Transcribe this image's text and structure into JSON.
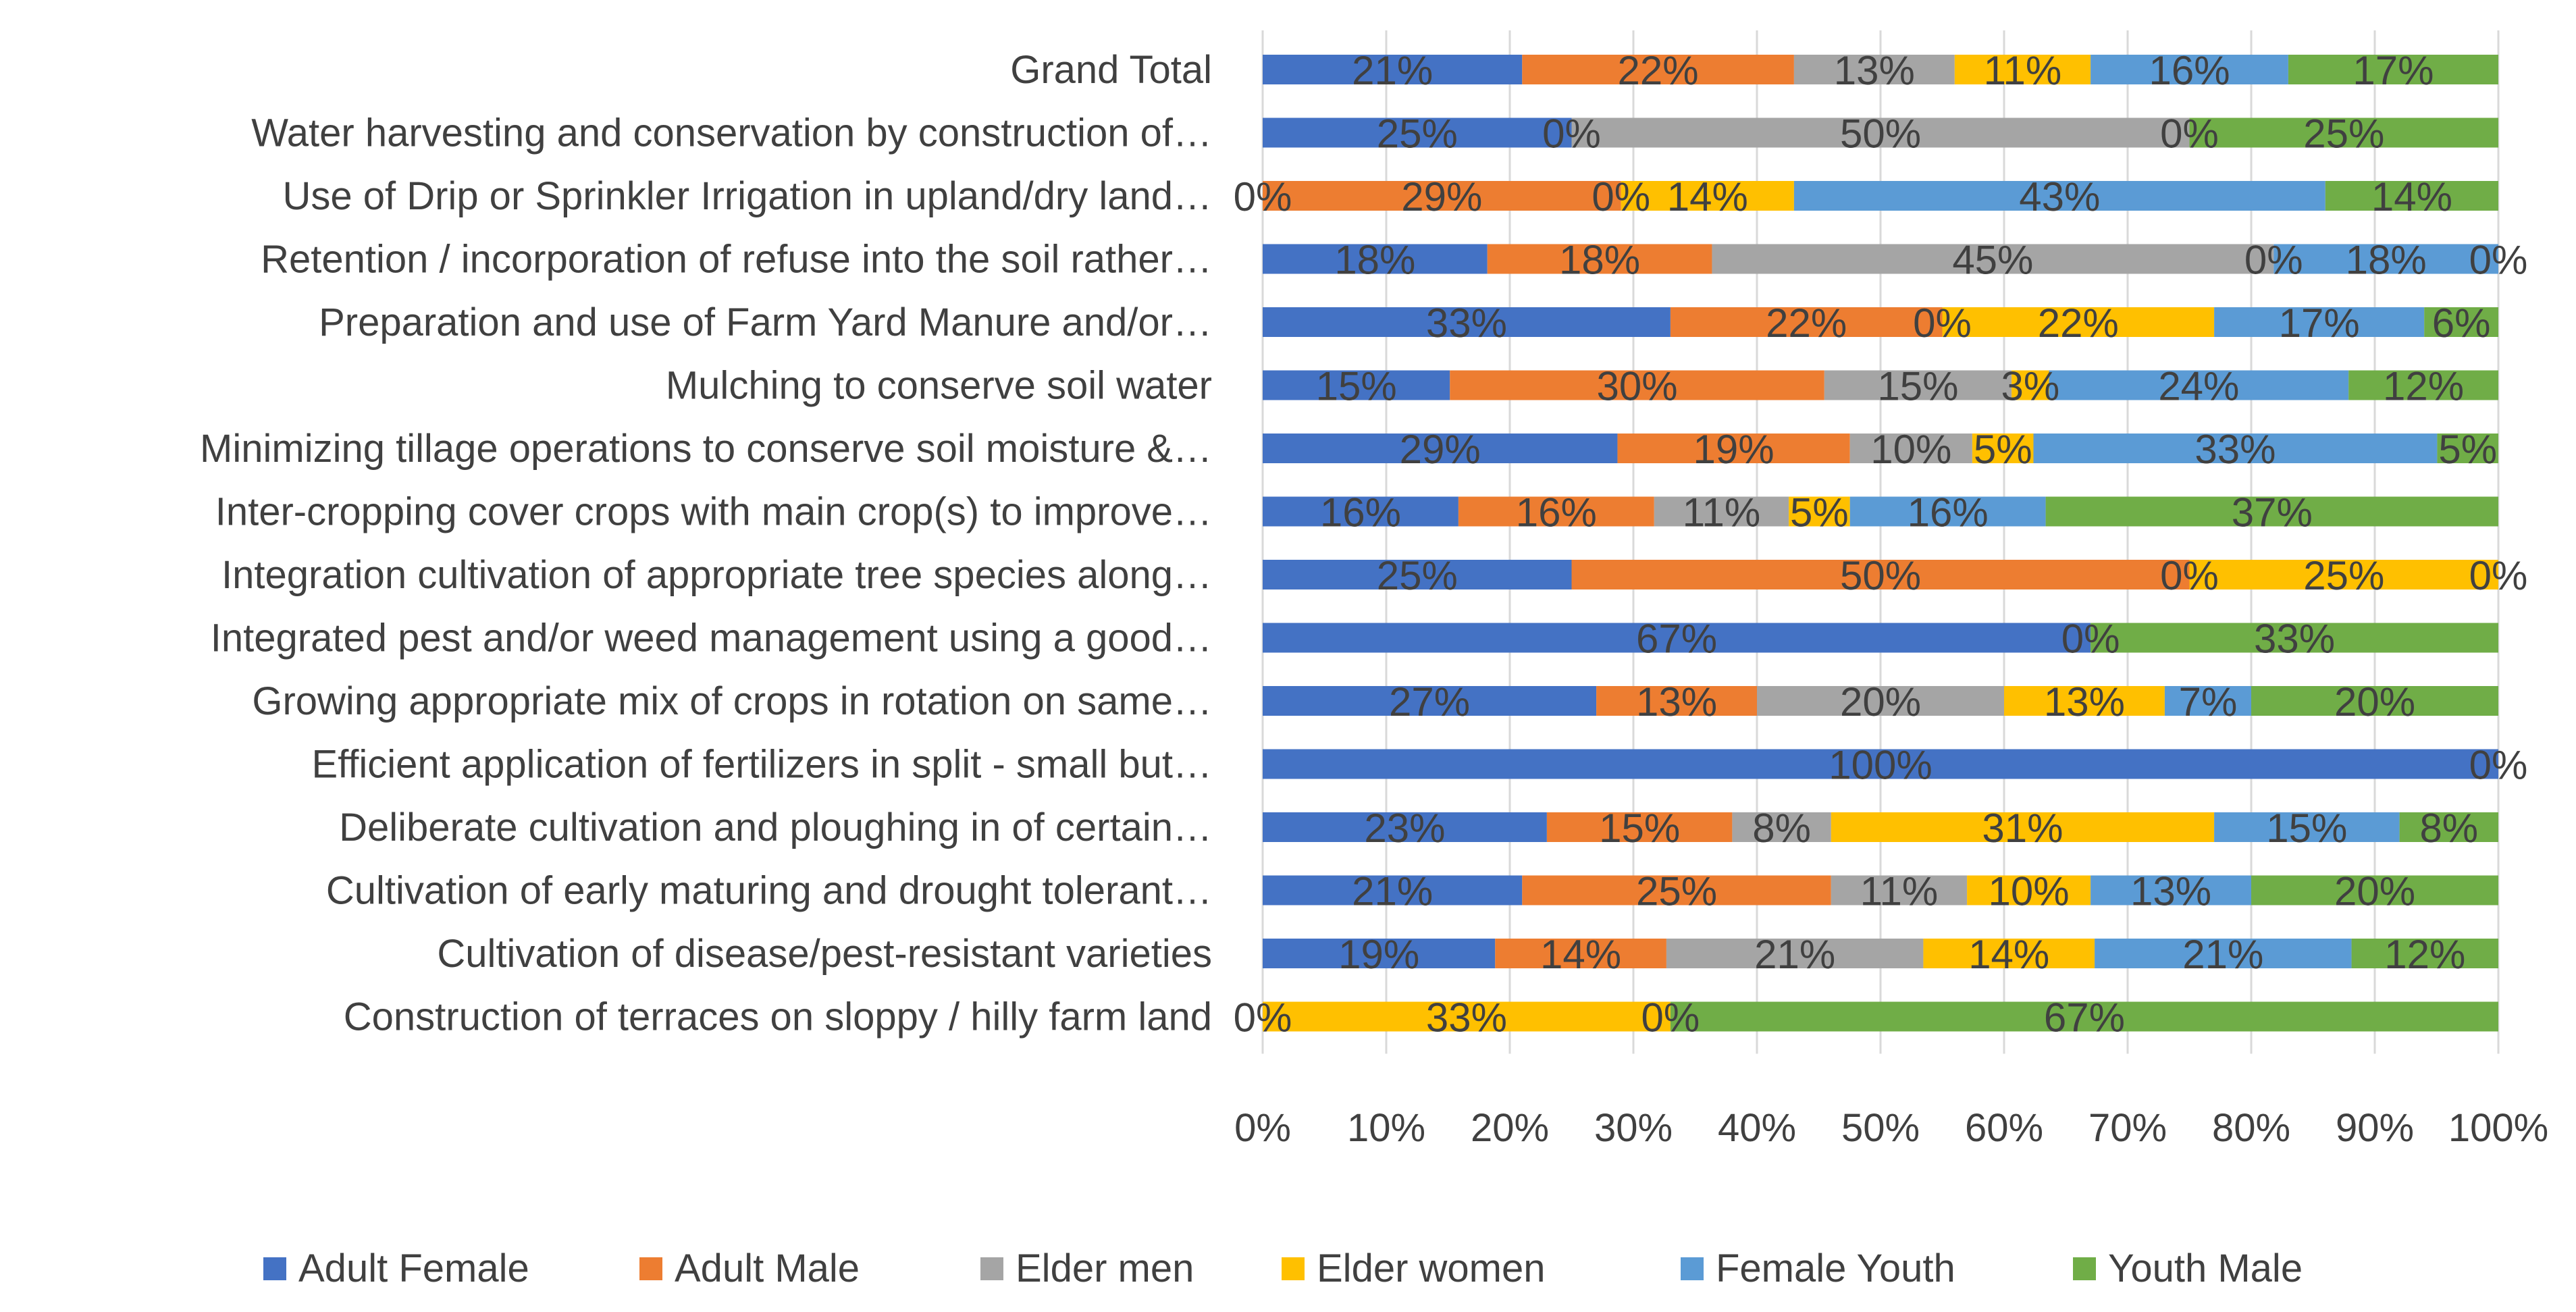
{
  "chart_data": {
    "type": "bar",
    "orientation": "horizontal",
    "stacked": "percent",
    "title": "",
    "xlabel": "",
    "ylabel": "",
    "xlim": [
      0,
      100
    ],
    "x_ticks": [
      "0%",
      "10%",
      "20%",
      "30%",
      "40%",
      "50%",
      "60%",
      "70%",
      "80%",
      "90%",
      "100%"
    ],
    "grid": "vertical",
    "legend_position": "bottom",
    "categories": [
      "Grand Total",
      "Water harvesting and conservation by construction of…",
      "Use of Drip or Sprinkler Irrigation in upland/dry land…",
      "Retention / incorporation of refuse into the soil rather…",
      "Preparation and use of Farm Yard Manure and/or…",
      "Mulching to conserve soil water",
      "Minimizing tillage operations to conserve soil moisture &…",
      "Inter-cropping cover crops with main crop(s) to improve…",
      "Integration cultivation of appropriate tree species along…",
      "Integrated pest and/or weed management using a good…",
      "Growing appropriate mix of crops in rotation on same…",
      "Efficient application of fertilizers in split - small but…",
      "Deliberate cultivation and ploughing in of certain…",
      "Cultivation of early maturing and drought tolerant…",
      "Cultivation of disease/pest-resistant  varieties",
      "Construction of terraces on sloppy / hilly farm land"
    ],
    "series": [
      {
        "name": "Adult Female",
        "color": "#4472C4",
        "values": [
          21,
          25,
          0,
          18,
          33,
          15,
          29,
          16,
          25,
          67,
          27,
          100,
          23,
          21,
          19,
          0
        ]
      },
      {
        "name": "Adult Male",
        "color": "#ED7D31",
        "values": [
          22,
          0,
          29,
          18,
          22,
          30,
          19,
          16,
          50,
          null,
          13,
          null,
          15,
          25,
          14,
          null
        ]
      },
      {
        "name": "Elder men",
        "color": "#A5A5A5",
        "values": [
          13,
          50,
          0,
          45,
          0,
          15,
          10,
          11,
          0,
          null,
          20,
          null,
          8,
          11,
          21,
          null
        ]
      },
      {
        "name": "Elder women",
        "color": "#FFC000",
        "values": [
          11,
          0,
          14,
          0,
          22,
          3,
          5,
          5,
          25,
          null,
          13,
          null,
          31,
          10,
          14,
          33
        ]
      },
      {
        "name": "Female Youth",
        "color": "#5B9BD5",
        "values": [
          16,
          null,
          43,
          18,
          17,
          24,
          33,
          16,
          0,
          0,
          7,
          null,
          15,
          13,
          21,
          0
        ]
      },
      {
        "name": "Youth Male",
        "color": "#70AD47",
        "values": [
          17,
          25,
          14,
          0,
          6,
          12,
          5,
          37,
          null,
          33,
          20,
          0,
          8,
          20,
          12,
          67
        ]
      }
    ]
  }
}
